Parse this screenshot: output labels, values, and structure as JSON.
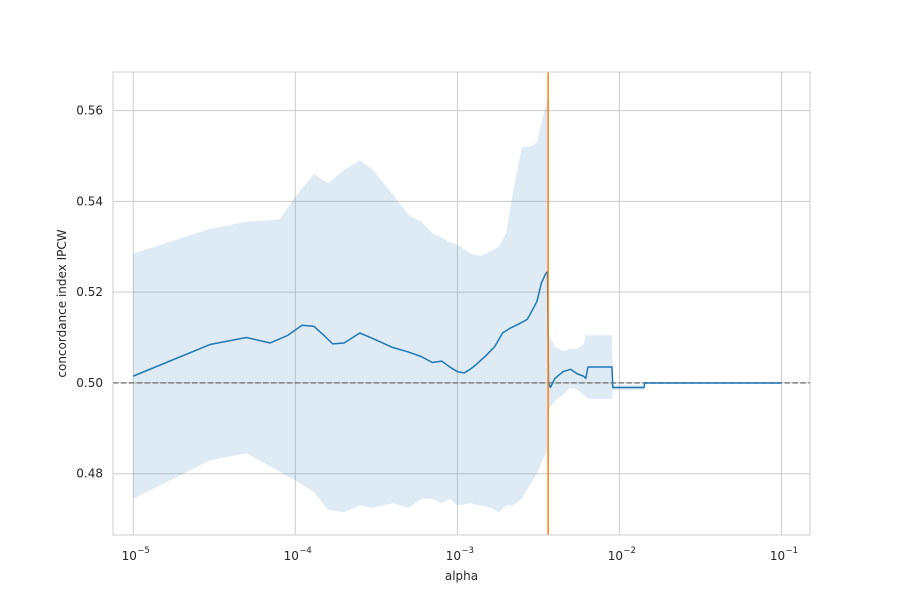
{
  "chart_data": {
    "type": "line",
    "title": "",
    "xlabel": "alpha",
    "ylabel": "concordance index IPCW",
    "x_scale": "log",
    "xlim": [
      7.5e-06,
      0.15
    ],
    "ylim": [
      0.4665,
      0.5685
    ],
    "grid": true,
    "legend": "none",
    "x_ticks": [
      {
        "value": 1e-05,
        "base": "10",
        "exp": "−5"
      },
      {
        "value": 0.0001,
        "base": "10",
        "exp": "−4"
      },
      {
        "value": 0.001,
        "base": "10",
        "exp": "−3"
      },
      {
        "value": 0.01,
        "base": "10",
        "exp": "−2"
      },
      {
        "value": 0.1,
        "base": "10",
        "exp": "−1"
      }
    ],
    "y_ticks": [
      {
        "value": 0.48,
        "label": "0.48"
      },
      {
        "value": 0.5,
        "label": "0.50"
      },
      {
        "value": 0.52,
        "label": "0.52"
      },
      {
        "value": 0.54,
        "label": "0.54"
      },
      {
        "value": 0.56,
        "label": "0.56"
      }
    ],
    "mean": {
      "alpha": [
        1e-05,
        3e-05,
        5e-05,
        7e-05,
        9e-05,
        0.00011,
        0.00013,
        0.00015,
        0.00017,
        0.0002,
        0.00025,
        0.0003,
        0.0004,
        0.0005,
        0.0006,
        0.0007,
        0.0008,
        0.0009,
        0.001,
        0.0011,
        0.0012,
        0.0013,
        0.0015,
        0.0017,
        0.0019,
        0.0021,
        0.0024,
        0.0027,
        0.0029,
        0.0031,
        0.0033,
        0.0035,
        0.0036,
        0.00365,
        0.00375,
        0.004,
        0.0045,
        0.005,
        0.0055,
        0.006,
        0.0062,
        0.0064,
        0.009,
        0.0091,
        0.0142,
        0.0143,
        0.1
      ],
      "value": [
        0.5015,
        0.5085,
        0.51,
        0.5088,
        0.5105,
        0.5127,
        0.5125,
        0.5105,
        0.5086,
        0.5088,
        0.511,
        0.5098,
        0.5078,
        0.5068,
        0.5058,
        0.5045,
        0.5048,
        0.5035,
        0.5025,
        0.5022,
        0.503,
        0.504,
        0.506,
        0.508,
        0.511,
        0.512,
        0.513,
        0.514,
        0.516,
        0.518,
        0.522,
        0.524,
        0.5245,
        0.5,
        0.499,
        0.501,
        0.5025,
        0.503,
        0.502,
        0.5015,
        0.501,
        0.5035,
        0.5035,
        0.499,
        0.499,
        0.5,
        0.5
      ]
    },
    "band": {
      "alpha": [
        1e-05,
        3e-05,
        5e-05,
        8e-05,
        0.0001,
        0.00013,
        0.00016,
        0.0002,
        0.00025,
        0.0003,
        0.0004,
        0.0005,
        0.0006,
        0.0007,
        0.0008,
        0.0009,
        0.001,
        0.0012,
        0.0014,
        0.0016,
        0.0018,
        0.002,
        0.0022,
        0.0025,
        0.0028,
        0.0031,
        0.0034,
        0.0036,
        0.00365,
        0.0038,
        0.004,
        0.0045,
        0.005,
        0.0055,
        0.006,
        0.0062,
        0.0064,
        0.009,
        0.0091,
        0.0142,
        0.0143,
        0.1
      ],
      "lower": [
        0.4745,
        0.483,
        0.4845,
        0.4805,
        0.4785,
        0.476,
        0.472,
        0.4715,
        0.473,
        0.4725,
        0.4735,
        0.4725,
        0.4745,
        0.4745,
        0.4735,
        0.4745,
        0.473,
        0.4735,
        0.473,
        0.4725,
        0.4715,
        0.473,
        0.473,
        0.4745,
        0.4775,
        0.48,
        0.4835,
        0.485,
        0.494,
        0.495,
        0.496,
        0.4975,
        0.499,
        0.4985,
        0.4975,
        0.497,
        0.4965,
        0.4965,
        0.4985,
        0.4985,
        0.5,
        0.5
      ],
      "upper": [
        0.5285,
        0.534,
        0.5355,
        0.536,
        0.541,
        0.546,
        0.544,
        0.547,
        0.549,
        0.547,
        0.5415,
        0.537,
        0.5355,
        0.533,
        0.532,
        0.531,
        0.5305,
        0.5285,
        0.528,
        0.529,
        0.53,
        0.533,
        0.542,
        0.552,
        0.552,
        0.553,
        0.559,
        0.563,
        0.5105,
        0.5095,
        0.508,
        0.507,
        0.5075,
        0.5075,
        0.5085,
        0.5105,
        0.5105,
        0.5105,
        0.4995,
        0.4995,
        0.5,
        0.5
      ]
    },
    "reference_line": {
      "y": 0.5,
      "style": "dashed",
      "color": "#808080"
    },
    "selected_alpha_line": {
      "x": 0.00363,
      "color": "#ff7f0e"
    },
    "colors": {
      "line": "#1f77b4",
      "band": "#1f77b4",
      "grid": "#cccccc",
      "frame": "#cccccc"
    }
  }
}
